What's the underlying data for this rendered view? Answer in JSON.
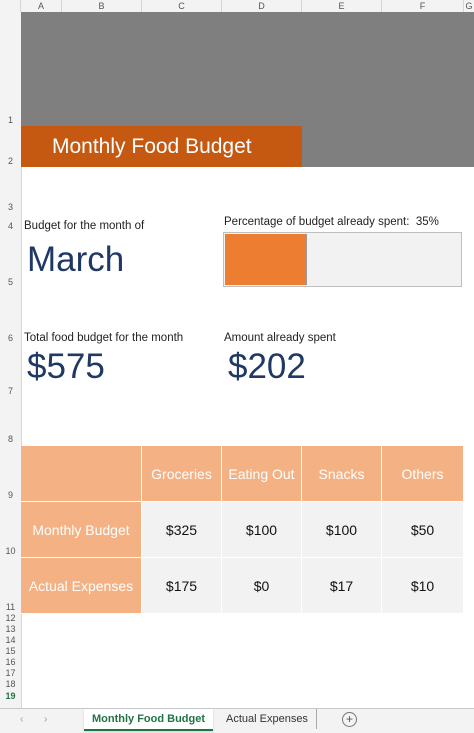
{
  "columns": [
    "A",
    "B",
    "C",
    "D",
    "E",
    "F",
    "G"
  ],
  "rows": [
    "1",
    "2",
    "3",
    "4",
    "5",
    "6",
    "7",
    "8",
    "9",
    "10",
    "11",
    "12",
    "13",
    "14",
    "15",
    "16",
    "17",
    "18",
    "19"
  ],
  "title": "Monthly Food Budget",
  "budget_month_label": "Budget for the month of",
  "budget_month": "March",
  "percent_label": "Percentage of budget already spent:",
  "percent_value": "35%",
  "percent_fraction": 0.35,
  "total_label": "Total food budget for the month",
  "total_value": "$575",
  "spent_label": "Amount already spent",
  "spent_value": "$202",
  "table": {
    "headers": [
      "Groceries",
      "Eating Out",
      "Snacks",
      "Others"
    ],
    "rows": [
      {
        "label": "Monthly Budget",
        "values": [
          "$325",
          "$100",
          "$100",
          "$50"
        ]
      },
      {
        "label": "Actual Expenses",
        "values": [
          "$175",
          "$0",
          "$17",
          "$10"
        ]
      }
    ]
  },
  "tabs": {
    "active": "Monthly Food Budget",
    "second": "Actual Expenses",
    "add": "+"
  },
  "colors": {
    "title_bg": "#c65911",
    "progress": "#ed7d31",
    "table_header": "#f4b183",
    "value_text": "#1f3864",
    "banner": "#7f7f7f"
  }
}
